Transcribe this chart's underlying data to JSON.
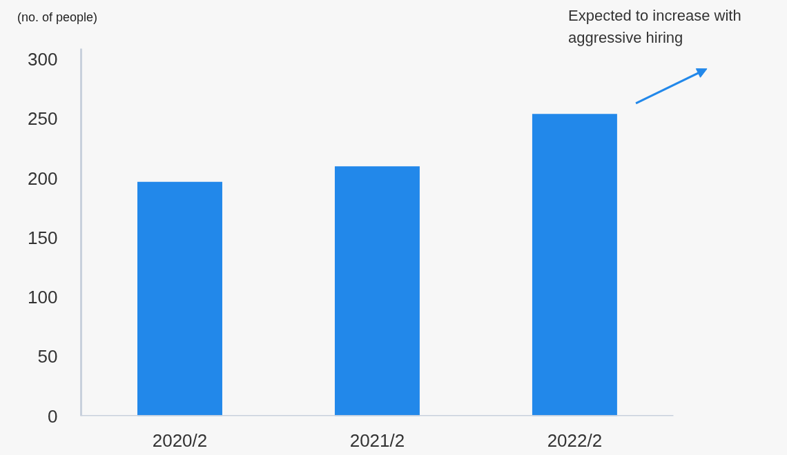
{
  "chart_data": {
    "type": "bar",
    "ylabel": "(no. of people)",
    "categories": [
      "2020/2",
      "2021/2",
      "2022/2"
    ],
    "values": [
      197,
      210,
      254
    ],
    "color": "#2288ea",
    "ylim": [
      0,
      309
    ],
    "yticks": [
      0,
      50,
      100,
      150,
      200,
      250,
      300
    ],
    "grid": false,
    "annotations": [
      "Expected to increase with\naggressive hiring"
    ]
  }
}
